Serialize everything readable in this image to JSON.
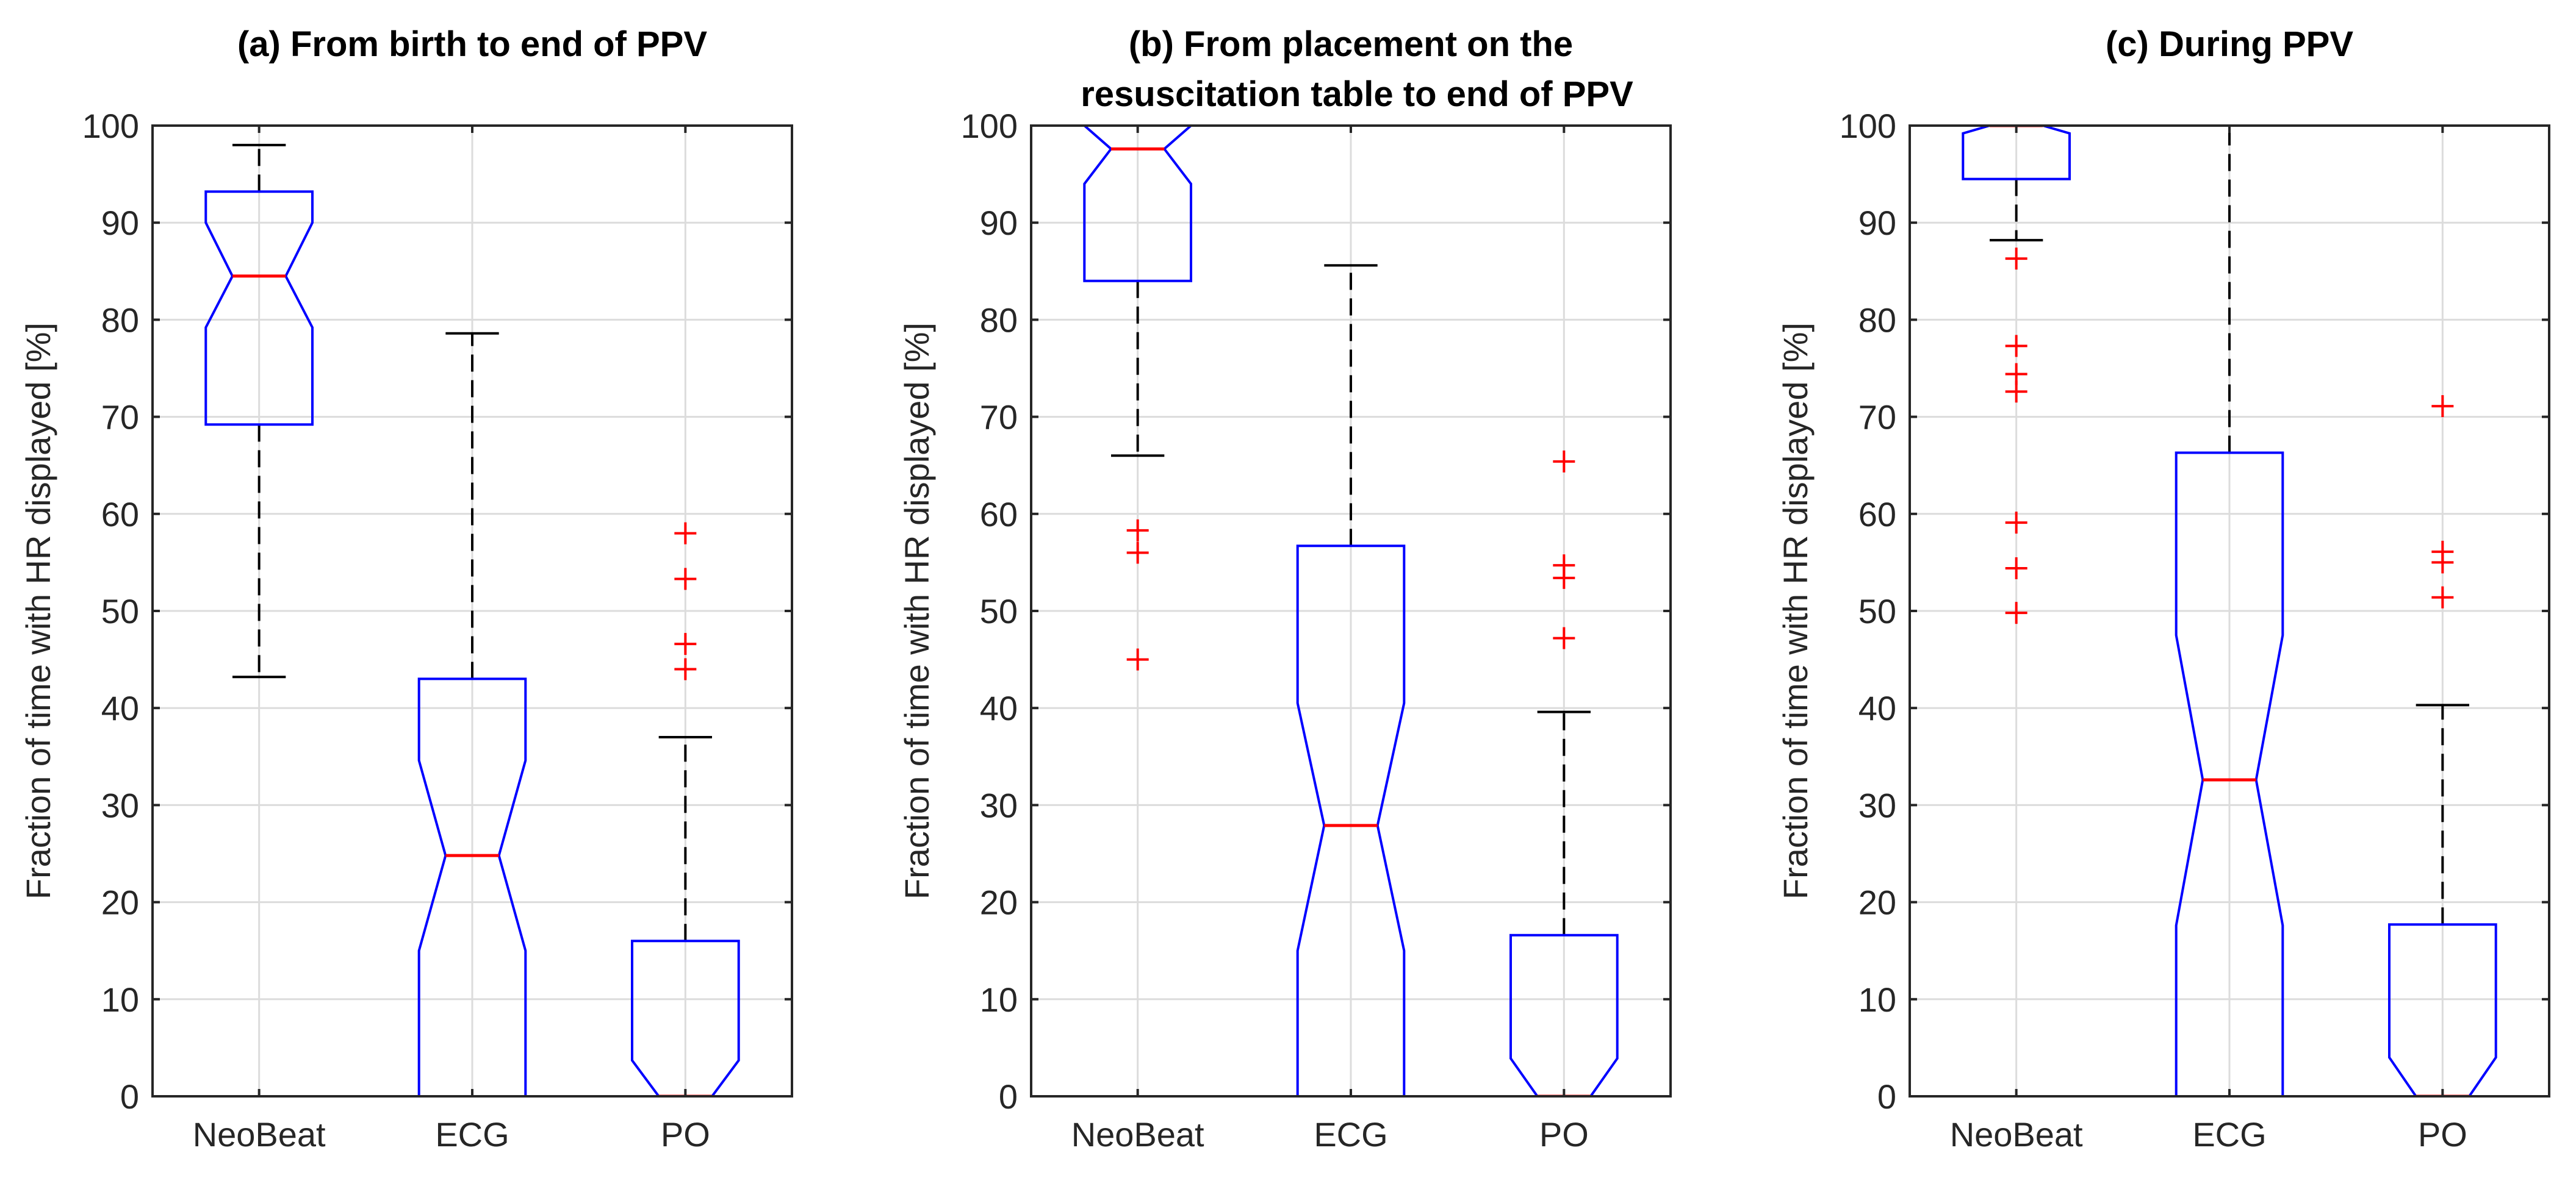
{
  "chart_data": [
    {
      "type": "box",
      "title_lines": [
        "(a) From birth to end of PPV"
      ],
      "ylabel": "Fraction of time with HR displayed [%]",
      "ylim": [
        0,
        100
      ],
      "yticks": [
        "0",
        "10",
        "20",
        "30",
        "40",
        "50",
        "60",
        "70",
        "80",
        "90",
        "100"
      ],
      "grid": true,
      "notched": true,
      "categories": [
        "NeoBeat",
        "ECG",
        "PO"
      ],
      "boxes": [
        {
          "q1": 69.2,
          "median": 84.5,
          "q3": 93.2,
          "notch_low": 79.2,
          "notch_high": 90.0,
          "whisker_low": 43.2,
          "whisker_high": 98.0,
          "outliers": []
        },
        {
          "q1": 0,
          "median": 24.8,
          "q3": 43.0,
          "notch_low": 15.0,
          "notch_high": 34.6,
          "whisker_low": 0,
          "whisker_high": 78.6,
          "outliers": []
        },
        {
          "q1": 0,
          "median": 0,
          "q3": 16.0,
          "notch_low": 0,
          "notch_high": 3.7,
          "whisker_low": 0,
          "whisker_high": 37.0,
          "outliers": [
            44.0,
            46.6,
            53.3,
            58.0
          ]
        }
      ]
    },
    {
      "type": "box",
      "title_lines": [
        "(b) From placement on the",
        "resuscitation table to end of PPV"
      ],
      "ylabel": "Fraction of time with HR displayed [%]",
      "ylim": [
        0,
        100
      ],
      "yticks": [
        "0",
        "10",
        "20",
        "30",
        "40",
        "50",
        "60",
        "70",
        "80",
        "90",
        "100"
      ],
      "grid": true,
      "notched": true,
      "categories": [
        "NeoBeat",
        "ECG",
        "PO"
      ],
      "boxes": [
        {
          "q1": 84.0,
          "median": 97.6,
          "q3": 100,
          "notch_low": 94.0,
          "notch_high": 100,
          "whisker_low": 66.0,
          "whisker_high": 100,
          "outliers": [
            45.0,
            56.0,
            58.3
          ]
        },
        {
          "q1": 0,
          "median": 27.9,
          "q3": 56.7,
          "notch_low": 15.0,
          "notch_high": 40.5,
          "whisker_low": 0,
          "whisker_high": 85.6,
          "outliers": []
        },
        {
          "q1": 0,
          "median": 0,
          "q3": 16.6,
          "notch_low": 0,
          "notch_high": 3.9,
          "whisker_low": 0,
          "whisker_high": 39.6,
          "outliers": [
            47.2,
            53.4,
            54.7,
            65.4
          ]
        }
      ]
    },
    {
      "type": "box",
      "title_lines": [
        "(c) During PPV"
      ],
      "ylabel": "Fraction of time with HR displayed [%]",
      "ylim": [
        0,
        100
      ],
      "yticks": [
        "0",
        "10",
        "20",
        "30",
        "40",
        "50",
        "60",
        "70",
        "80",
        "90",
        "100"
      ],
      "grid": true,
      "notched": true,
      "categories": [
        "NeoBeat",
        "ECG",
        "PO"
      ],
      "boxes": [
        {
          "q1": 94.5,
          "median": 100,
          "q3": 100,
          "notch_low": 99.2,
          "notch_high": 100,
          "whisker_low": 88.2,
          "whisker_high": 100,
          "outliers": [
            49.8,
            54.4,
            59.1,
            72.6,
            74.4,
            77.3,
            86.3
          ]
        },
        {
          "q1": 0,
          "median": 32.6,
          "q3": 66.3,
          "notch_low": 17.6,
          "notch_high": 47.5,
          "whisker_low": 0,
          "whisker_high": 100,
          "outliers": []
        },
        {
          "q1": 0,
          "median": 0,
          "q3": 17.7,
          "notch_low": 0,
          "notch_high": 4.0,
          "whisker_low": 0,
          "whisker_high": 40.3,
          "outliers": [
            51.4,
            55.0,
            56.1,
            71.1
          ]
        }
      ]
    }
  ]
}
